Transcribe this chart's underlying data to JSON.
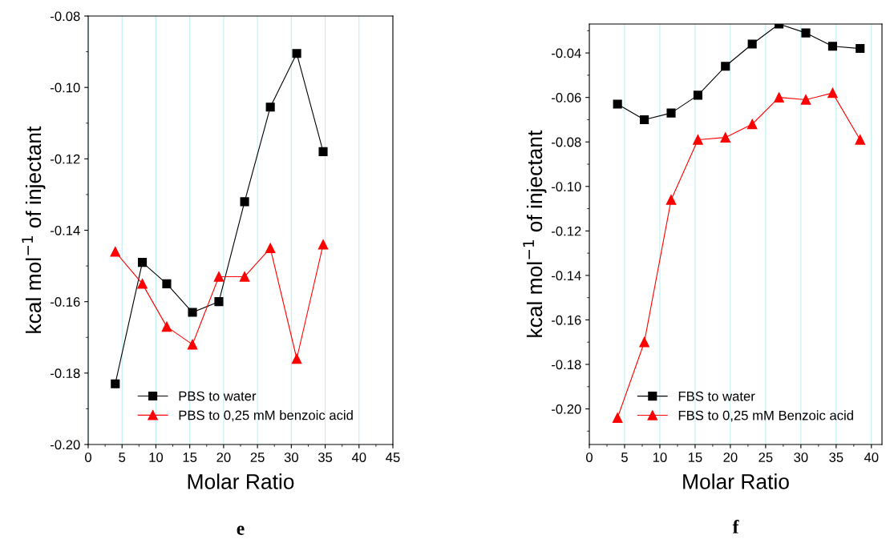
{
  "chart_data": [
    {
      "type": "line",
      "xlabel": "Molar Ratio",
      "ylabel": "kcal mol$^{−1}$ of injectant",
      "annotations": [
        "e"
      ],
      "xlim": [
        0,
        45
      ],
      "xticks": [
        0,
        5,
        10,
        15,
        20,
        25,
        30,
        35,
        40,
        45
      ],
      "ylim": [
        -0.2,
        -0.08
      ],
      "yticks": [
        {
          "value": -0.2,
          "label": "-0.20"
        },
        {
          "value": -0.18,
          "label": "-0.18"
        },
        {
          "value": -0.16,
          "label": "-0.16"
        },
        {
          "value": -0.14,
          "label": "-0.14"
        },
        {
          "value": -0.12,
          "label": "-0.12"
        },
        {
          "value": -0.1,
          "label": "-0.10"
        },
        {
          "value": -0.08,
          "label": "-0.08"
        }
      ],
      "grid": "x",
      "legend": "bottom left",
      "series": [
        {
          "name": "PBS to water",
          "color": "#000000",
          "marker": "square",
          "x": [
            4,
            8,
            11.6,
            15.4,
            19.3,
            23.1,
            26.9,
            30.8,
            34.7
          ],
          "values": [
            -0.183,
            -0.149,
            -0.155,
            -0.163,
            -0.16,
            -0.132,
            -0.1055,
            -0.0905,
            -0.118
          ]
        },
        {
          "name": "PBS to 0,25 mM benzoic acid",
          "color": "#ff0000",
          "marker": "triangle",
          "x": [
            4,
            8,
            11.6,
            15.4,
            19.3,
            23.1,
            26.9,
            30.8,
            34.7
          ],
          "values": [
            -0.146,
            -0.155,
            -0.167,
            -0.172,
            -0.153,
            -0.153,
            -0.145,
            -0.176,
            -0.144
          ]
        }
      ]
    },
    {
      "type": "line",
      "xlabel": "Molar Ratio",
      "ylabel": "kcal mol$^{−1}$ of injectant",
      "annotations": [
        "f"
      ],
      "xlim": [
        0,
        41.5
      ],
      "xticks": [
        0,
        5,
        10,
        15,
        20,
        25,
        30,
        35,
        40
      ],
      "ylim": [
        -0.216,
        -0.027
      ],
      "yticks": [
        {
          "value": -0.2,
          "label": "-0.20"
        },
        {
          "value": -0.18,
          "label": "-0.18"
        },
        {
          "value": -0.16,
          "label": "-0.16"
        },
        {
          "value": -0.14,
          "label": "-0.14"
        },
        {
          "value": -0.12,
          "label": "-0.12"
        },
        {
          "value": -0.1,
          "label": "-0.10"
        },
        {
          "value": -0.08,
          "label": "-0.08"
        },
        {
          "value": -0.06,
          "label": "-0.06"
        },
        {
          "value": -0.04,
          "label": "-0.04"
        }
      ],
      "grid": "x",
      "legend": "bottom left",
      "series": [
        {
          "name": "FBS to water",
          "color": "#000000",
          "marker": "square",
          "x": [
            4,
            7.8,
            11.6,
            15.4,
            19.3,
            23.1,
            26.9,
            30.7,
            34.5,
            38.4
          ],
          "values": [
            -0.063,
            -0.07,
            -0.067,
            -0.059,
            -0.046,
            -0.036,
            -0.027,
            -0.031,
            -0.037,
            -0.038
          ]
        },
        {
          "name": "FBS to 0,25 mM Benzoic acid",
          "color": "#ff0000",
          "marker": "triangle",
          "x": [
            4,
            7.8,
            11.6,
            15.4,
            19.3,
            23.1,
            26.9,
            30.7,
            34.5,
            38.4
          ],
          "values": [
            -0.204,
            -0.17,
            -0.106,
            -0.079,
            -0.078,
            -0.072,
            -0.06,
            -0.061,
            -0.058,
            -0.079
          ]
        }
      ]
    }
  ]
}
